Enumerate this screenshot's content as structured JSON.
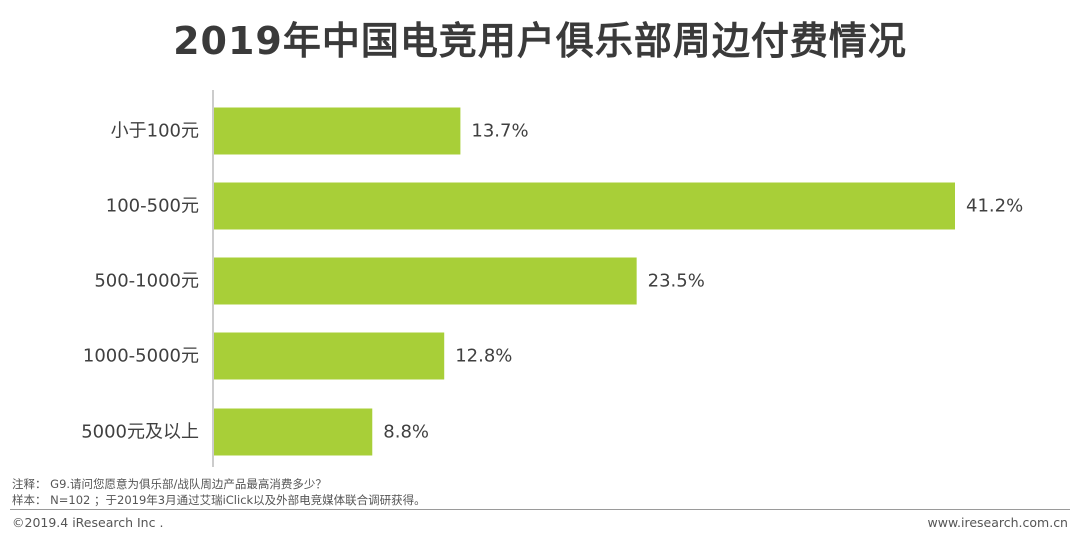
{
  "chart_data": {
    "type": "bar",
    "orientation": "horizontal",
    "title": "2019年中国电竞用户俱乐部周边付费情况",
    "categories": [
      "小于100元",
      "100-500元",
      "500-1000元",
      "1000-5000元",
      "5000元及以上"
    ],
    "values": [
      13.7,
      41.2,
      23.5,
      12.8,
      8.8
    ],
    "value_labels": [
      "13.7%",
      "41.2%",
      "23.5%",
      "12.8%",
      "8.8%"
    ],
    "unit": "%",
    "xlim": [
      0,
      45
    ],
    "grid": false,
    "legend": "none",
    "bar_color": "#a8cf38"
  },
  "notes": {
    "line1": "注释： G9.请问您愿意为俱乐部/战队周边产品最高消费多少？",
    "line2": "样本： N=102 ；于2019年3月通过艾瑞iClick以及外部电竞媒体联合调研获得。"
  },
  "footer": {
    "copyright": "©2019.4 iResearch Inc .",
    "website": "www.iresearch.com.cn"
  }
}
